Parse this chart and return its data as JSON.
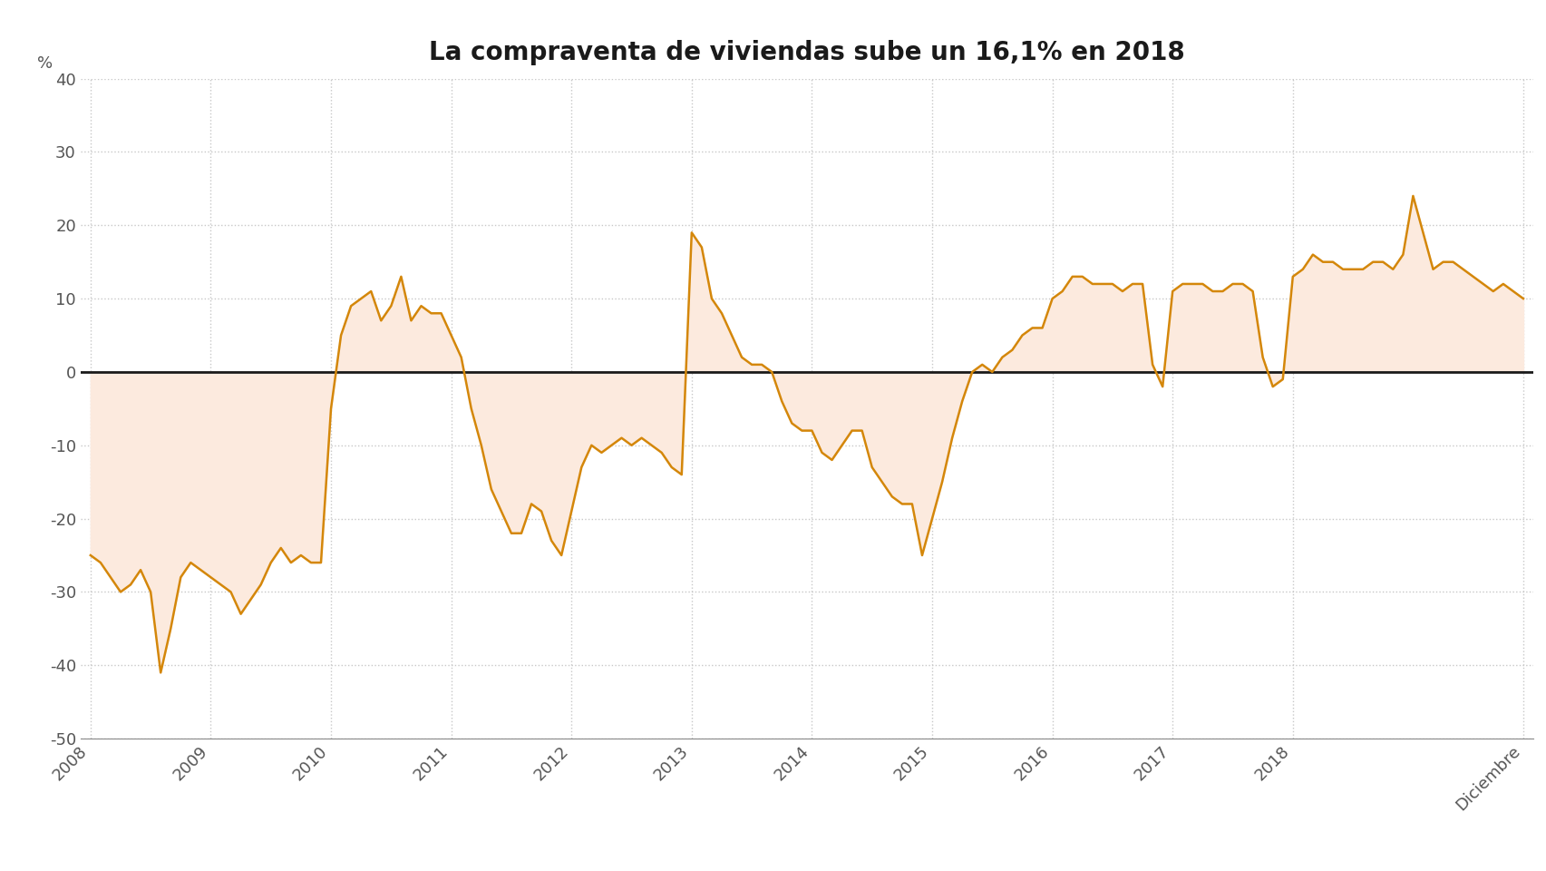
{
  "title": "La compraventa de viviendas sube un 16,1% en 2018",
  "ylabel": "%",
  "line_color": "#D4870A",
  "fill_color": "#FCEADE",
  "zero_line_color": "#1a1a1a",
  "background_color": "#ffffff",
  "grid_color": "#c8c8c8",
  "title_fontsize": 20,
  "ylabel_fontsize": 13,
  "tick_fontsize": 13,
  "ylim": [
    -50,
    40
  ],
  "yticks": [
    -50,
    -40,
    -30,
    -20,
    -10,
    0,
    10,
    20,
    30,
    40
  ],
  "x_labels": [
    "2008",
    "2009",
    "2010",
    "2011",
    "2012",
    "2013",
    "2014",
    "2015",
    "2016",
    "2017",
    "2018",
    "Diciembre"
  ],
  "data": [
    -25,
    -26,
    -28,
    -30,
    -29,
    -27,
    -30,
    -41,
    -35,
    -28,
    -26,
    -27,
    -28,
    -29,
    -30,
    -33,
    -31,
    -29,
    -26,
    -24,
    -26,
    -25,
    -26,
    -26,
    -5,
    5,
    9,
    10,
    11,
    7,
    9,
    13,
    7,
    9,
    8,
    8,
    5,
    2,
    -5,
    -10,
    -16,
    -19,
    -22,
    -22,
    -18,
    -19,
    -23,
    -25,
    -19,
    -13,
    -10,
    -11,
    -10,
    -9,
    -10,
    -9,
    -10,
    -11,
    -13,
    -14,
    19,
    17,
    10,
    8,
    5,
    2,
    1,
    1,
    0,
    -4,
    -7,
    -8,
    -8,
    -11,
    -12,
    -10,
    -8,
    -8,
    -13,
    -15,
    -17,
    -18,
    -18,
    -25,
    -20,
    -15,
    -9,
    -4,
    0,
    1,
    0,
    2,
    3,
    5,
    6,
    6,
    10,
    11,
    13,
    13,
    12,
    12,
    12,
    11,
    12,
    12,
    1,
    -2,
    11,
    12,
    12,
    12,
    11,
    11,
    12,
    12,
    11,
    2,
    -2,
    -1,
    13,
    14,
    16,
    15,
    15,
    14,
    14,
    14,
    15,
    15,
    14,
    16,
    24,
    19,
    14,
    15,
    15,
    14,
    13,
    12,
    11,
    12,
    11,
    10
  ]
}
